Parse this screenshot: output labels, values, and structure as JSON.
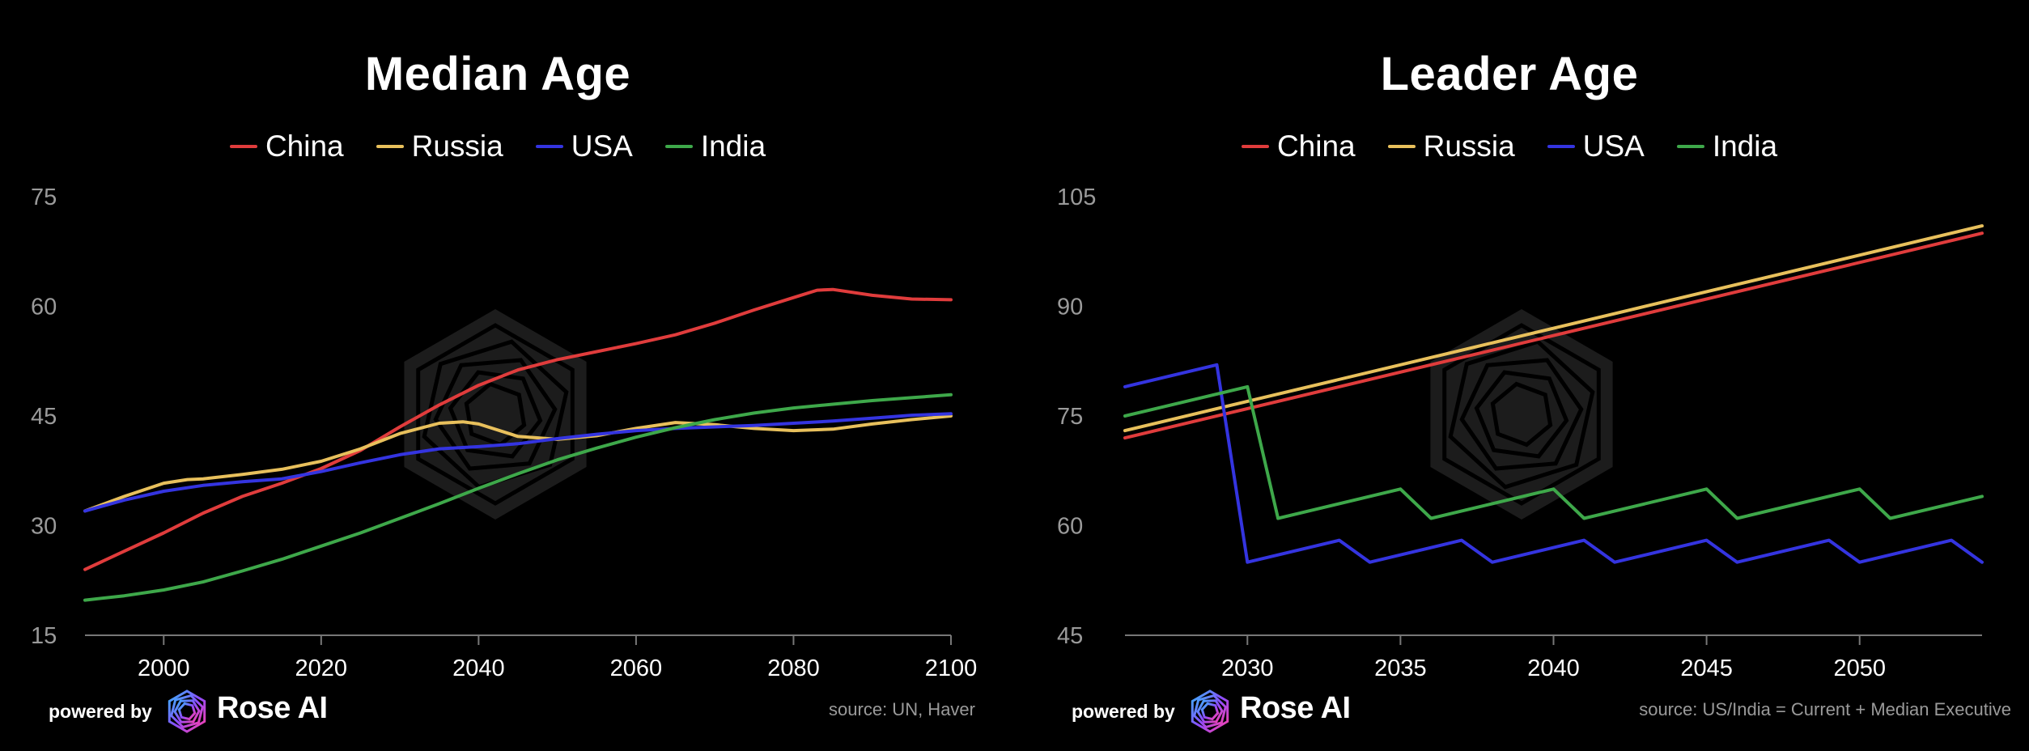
{
  "branding": {
    "powered_by": "powered by",
    "brand_name": "Rose AI"
  },
  "colors": {
    "China": "#e03c3c",
    "Russia": "#e8c05c",
    "USA": "#3434e0",
    "India": "#3ea84a",
    "axis": "#777777",
    "tick_label": "#9a9a9a",
    "watermark": "#1c1c1c"
  },
  "chart_data": [
    {
      "type": "line",
      "title": "Median Age",
      "source": "source: UN, Haver",
      "legend": [
        "China",
        "Russia",
        "USA",
        "India"
      ],
      "legend_placement": "top-center",
      "xlim": [
        1990,
        2100
      ],
      "ylim": [
        15,
        75
      ],
      "xticks": [
        2000,
        2020,
        2040,
        2060,
        2080,
        2100
      ],
      "yticks": [
        15,
        30,
        45,
        60,
        75
      ],
      "grid": false,
      "series": [
        {
          "name": "China",
          "x": [
            1990,
            1995,
            2000,
            2005,
            2010,
            2015,
            2020,
            2025,
            2030,
            2035,
            2040,
            2045,
            2050,
            2055,
            2060,
            2065,
            2070,
            2075,
            2080,
            2083,
            2085,
            2090,
            2095,
            2100
          ],
          "y": [
            24,
            26.5,
            29,
            31.7,
            34,
            35.8,
            37.8,
            40.3,
            43.5,
            46.5,
            49.2,
            51.3,
            52.7,
            53.8,
            54.9,
            56.1,
            57.7,
            59.5,
            61.2,
            62.2,
            62.3,
            61.5,
            61,
            60.9
          ]
        },
        {
          "name": "Russia",
          "x": [
            1990,
            1995,
            2000,
            2003,
            2005,
            2010,
            2015,
            2020,
            2025,
            2030,
            2035,
            2038,
            2040,
            2045,
            2050,
            2055,
            2060,
            2065,
            2070,
            2075,
            2080,
            2085,
            2090,
            2095,
            2100
          ],
          "y": [
            32,
            34,
            35.8,
            36.3,
            36.4,
            37,
            37.7,
            38.8,
            40.5,
            42.6,
            44,
            44.2,
            43.9,
            42.2,
            41.8,
            42.3,
            43.3,
            44.1,
            43.8,
            43.3,
            43,
            43.2,
            43.9,
            44.5,
            45
          ]
        },
        {
          "name": "USA",
          "x": [
            1990,
            1995,
            2000,
            2005,
            2010,
            2015,
            2020,
            2025,
            2030,
            2035,
            2040,
            2045,
            2050,
            2055,
            2060,
            2065,
            2070,
            2075,
            2080,
            2085,
            2090,
            2095,
            2100
          ],
          "y": [
            32,
            33.5,
            34.7,
            35.5,
            36,
            36.4,
            37.4,
            38.6,
            39.7,
            40.5,
            40.8,
            41.2,
            41.9,
            42.5,
            43,
            43.3,
            43.5,
            43.7,
            44,
            44.3,
            44.7,
            45.1,
            45.3
          ]
        },
        {
          "name": "India",
          "x": [
            1990,
            1995,
            2000,
            2005,
            2010,
            2015,
            2020,
            2025,
            2030,
            2035,
            2040,
            2045,
            2050,
            2055,
            2060,
            2065,
            2070,
            2075,
            2080,
            2085,
            2090,
            2095,
            2100
          ],
          "y": [
            19.8,
            20.4,
            21.2,
            22.3,
            23.8,
            25.4,
            27.2,
            29,
            31,
            33,
            35.1,
            37.1,
            39,
            40.6,
            42.1,
            43.4,
            44.5,
            45.4,
            46.1,
            46.6,
            47.1,
            47.5,
            47.9
          ]
        }
      ]
    },
    {
      "type": "line",
      "title": "Leader Age",
      "source": "source: US/India = Current + Median Executive",
      "legend": [
        "China",
        "Russia",
        "USA",
        "India"
      ],
      "legend_placement": "top-center",
      "xlim": [
        2026,
        2054
      ],
      "ylim": [
        45,
        105
      ],
      "xticks": [
        2030,
        2035,
        2040,
        2045,
        2050
      ],
      "yticks": [
        45,
        60,
        75,
        90,
        105
      ],
      "grid": false,
      "series": [
        {
          "name": "China",
          "x": [
            2026,
            2054
          ],
          "y": [
            72,
            100
          ]
        },
        {
          "name": "Russia",
          "x": [
            2026,
            2054
          ],
          "y": [
            73,
            101
          ]
        },
        {
          "name": "USA",
          "x": [
            2026,
            2029,
            2030,
            2033,
            2034,
            2037,
            2038,
            2041,
            2042,
            2045,
            2046,
            2049,
            2050,
            2053,
            2054
          ],
          "y": [
            79,
            82,
            55,
            58,
            55,
            58,
            55,
            58,
            55,
            58,
            55,
            58,
            55,
            58,
            55
          ]
        },
        {
          "name": "India",
          "x": [
            2026,
            2030,
            2031,
            2035,
            2036,
            2040,
            2041,
            2045,
            2046,
            2050,
            2051,
            2054
          ],
          "y": [
            75,
            79,
            61,
            65,
            61,
            65,
            61,
            65,
            61,
            65,
            61,
            64
          ]
        }
      ]
    }
  ]
}
